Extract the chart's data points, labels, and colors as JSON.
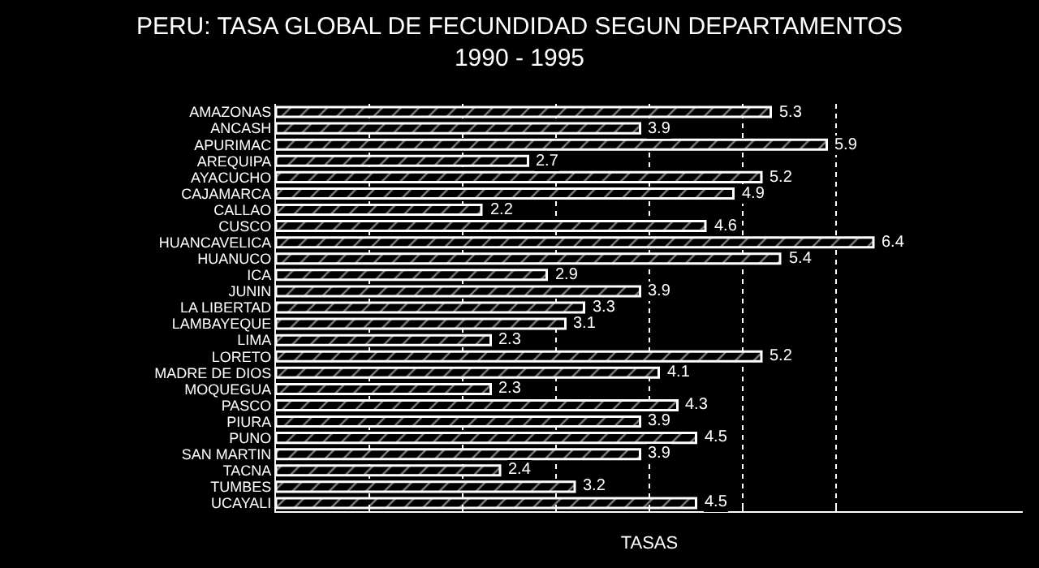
{
  "chart_data": {
    "type": "bar",
    "orientation": "horizontal",
    "title": "PERU: TASA GLOBAL DE FECUNDIDAD SEGUN DEPARTAMENTOS\n1990 - 1995",
    "xlabel": "TASAS",
    "categories": [
      "AMAZONAS",
      "ANCASH",
      "APURIMAC",
      "AREQUIPA",
      "AYACUCHO",
      "CAJAMARCA",
      "CALLAO",
      "CUSCO",
      "HUANCAVELICA",
      "HUANUCO",
      "ICA",
      "JUNIN",
      "LA LIBERTAD",
      "LAMBAYEQUE",
      "LIMA",
      "LORETO",
      "MADRE DE DIOS",
      "MOQUEGUA",
      "PASCO",
      "PIURA",
      "PUNO",
      "SAN MARTIN",
      "TACNA",
      "TUMBES",
      "UCAYALI"
    ],
    "values": [
      5.3,
      3.9,
      5.9,
      2.7,
      5.2,
      4.9,
      2.2,
      4.6,
      6.4,
      5.4,
      2.9,
      3.9,
      3.3,
      3.1,
      2.3,
      5.2,
      4.1,
      2.3,
      4.3,
      3.9,
      4.5,
      3.9,
      2.4,
      3.2,
      4.5
    ],
    "color": "#ffffff",
    "data_labels": true,
    "xlim": [
      0,
      8
    ],
    "xticks": [
      {
        "value": 0,
        "label": null
      },
      {
        "value": 1,
        "label": null
      },
      {
        "value": 2,
        "label": null
      },
      {
        "value": 3,
        "label": null
      },
      {
        "value": 4,
        "label": null
      },
      {
        "value": 5,
        "label": null
      },
      {
        "value": 6,
        "label": null
      }
    ],
    "grid": "x",
    "line_style": "dotted",
    "tick_labels": "y"
  }
}
